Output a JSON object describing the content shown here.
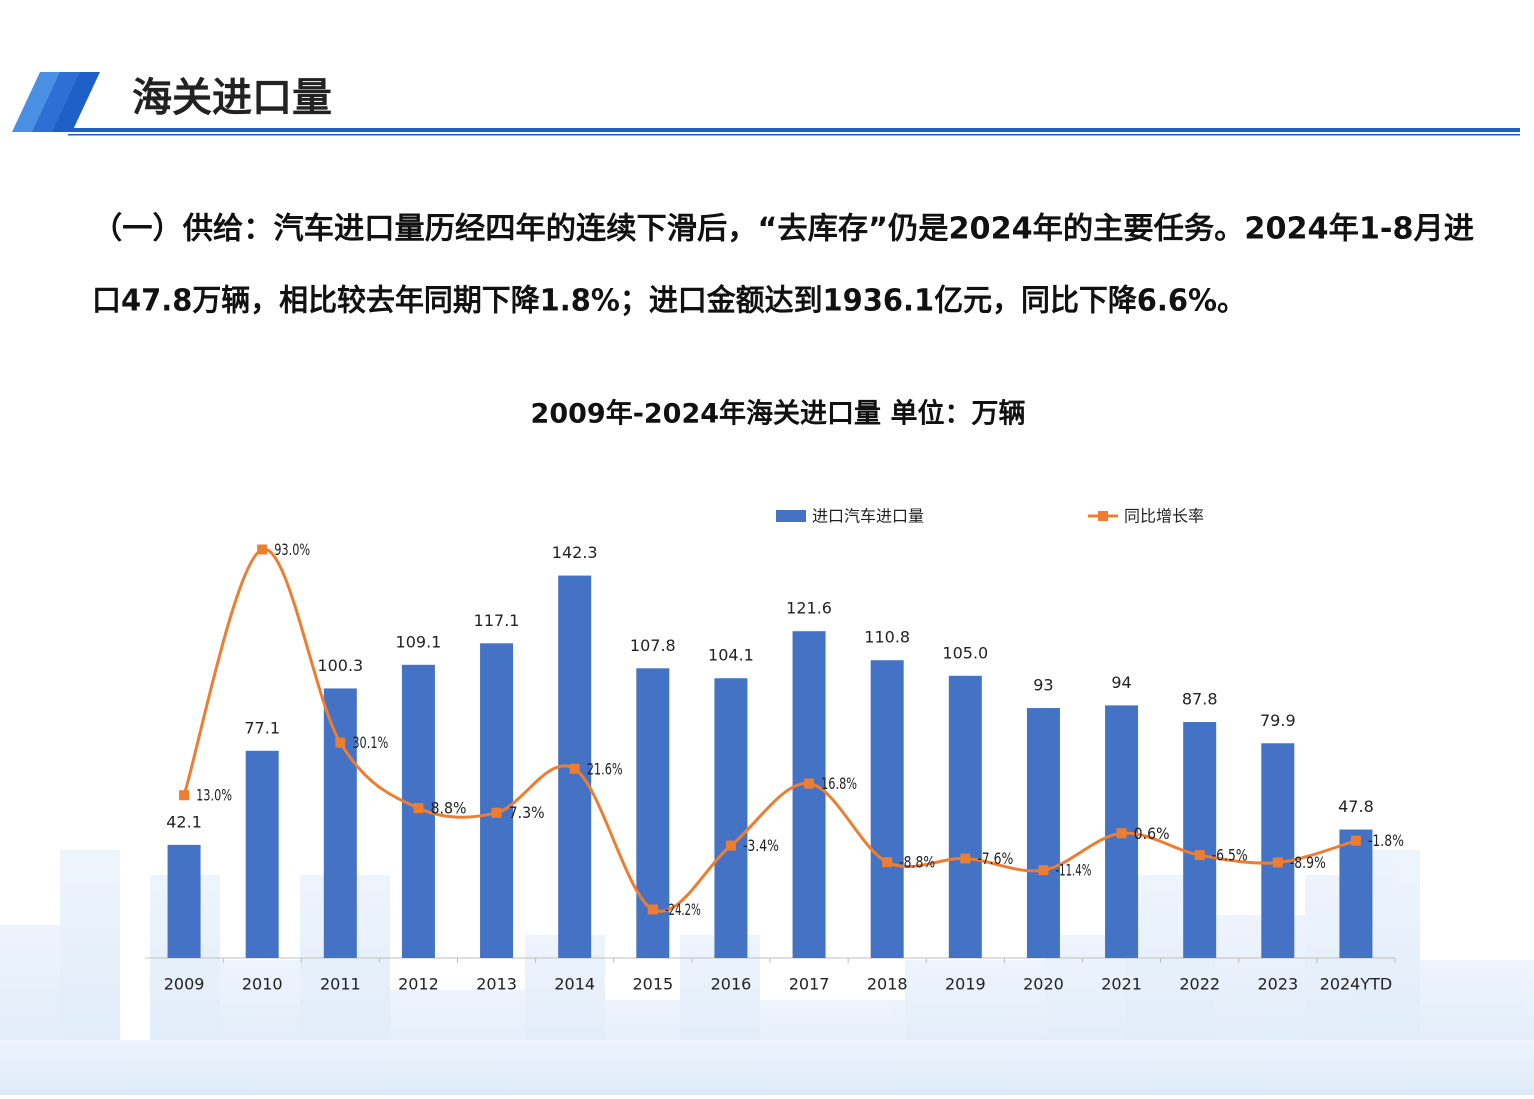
{
  "header": {
    "title": "海关进口量"
  },
  "paragraph": {
    "lines": [
      "（一）供给：汽车进口量历经四年的连续下滑后，“去库存”仍是2024年的主要任务。2024年1-8月进",
      "口47.8万辆，相比较去年同期下降1.8%；进口金额达到1936.1亿元，同比下降6.6%。"
    ]
  },
  "chart_data": {
    "type": "combo",
    "title": "2009年-2024年海关进口量  单位：万辆",
    "categories": [
      "2009",
      "2010",
      "2011",
      "2012",
      "2013",
      "2014",
      "2015",
      "2016",
      "2017",
      "2018",
      "2019",
      "2020",
      "2021",
      "2022",
      "2023",
      "2024YTD"
    ],
    "series": [
      {
        "name": "进口汽车进口量",
        "type": "bar",
        "color": "#4472c4",
        "values": [
          42.1,
          77.1,
          100.3,
          109.1,
          117.1,
          142.3,
          107.8,
          104.1,
          121.6,
          110.8,
          105.0,
          93,
          94,
          87.8,
          79.9,
          47.8
        ],
        "value_labels": [
          "42.1",
          "77.1",
          "100.3",
          "109.1",
          "117.1",
          "142.3",
          "107.8",
          "104.1",
          "121.6",
          "110.8",
          "105.0",
          "93",
          "94",
          "87.8",
          "79.9",
          "47.8"
        ]
      },
      {
        "name": "同比增长率",
        "type": "line",
        "axis": "y2",
        "color": "#ed7d31",
        "values": [
          13.0,
          93.0,
          30.1,
          8.8,
          7.3,
          21.6,
          -24.2,
          -3.4,
          16.8,
          -8.8,
          -7.6,
          -11.4,
          0.6,
          -6.5,
          -8.9,
          -1.8
        ],
        "value_labels": [
          "13.0%",
          "93.0%",
          "30.1%",
          "8.8%",
          "7.3%",
          "21.6%",
          "-24.2%",
          "-3.4%",
          "16.8%",
          "-8.8%",
          "-7.6%",
          "-11.4%",
          "0.6%",
          "-6.5%",
          "-8.9%",
          "-1.8%"
        ]
      }
    ],
    "ylim": [
      0,
      160
    ],
    "y2lim": [
      -40,
      100
    ],
    "grid": false,
    "legend": "top"
  }
}
